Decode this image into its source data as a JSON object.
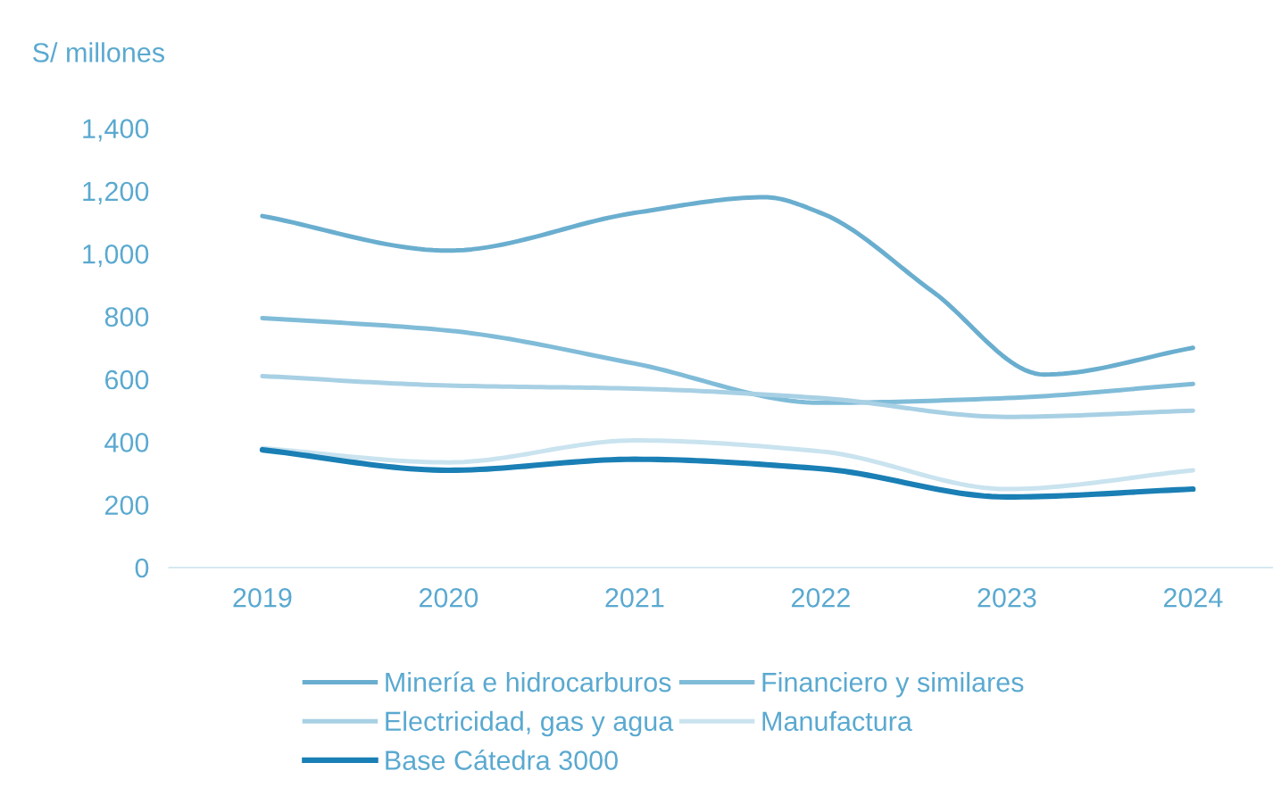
{
  "chart_data": {
    "type": "line",
    "ylabel": "S/ millones",
    "x": [
      2019,
      2020,
      2021,
      2022,
      2023,
      2024
    ],
    "series": [
      {
        "name": "Minería e hidrocarburos",
        "color": "#6aaecf",
        "x": [
          2019,
          2020,
          2021,
          2021.7,
          2022,
          2022.6,
          2023.2,
          2024
        ],
        "values": [
          1120,
          1010,
          1130,
          1180,
          1130,
          880,
          615,
          700
        ]
      },
      {
        "name": "Financiero y similares",
        "color": "#80bcd8",
        "values": [
          795,
          755,
          650,
          525,
          540,
          585
        ]
      },
      {
        "name": "Electricidad, gas y agua",
        "color": "#a8d0e4",
        "values": [
          610,
          580,
          570,
          540,
          480,
          500
        ]
      },
      {
        "name": "Manufactura",
        "color": "#c9e3ef",
        "values": [
          380,
          335,
          405,
          370,
          250,
          310
        ]
      },
      {
        "name": "Base Cátedra 3000",
        "color": "#1a7fb5",
        "values": [
          375,
          310,
          345,
          315,
          225,
          250
        ]
      }
    ],
    "xlim": [
      2018.5,
      2024.43
    ],
    "xticks": [
      2019,
      2020,
      2021,
      2022,
      2023,
      2024
    ],
    "ylim": [
      0,
      1400
    ],
    "yticks": [
      0,
      200,
      400,
      600,
      800,
      {
        "value": 1000,
        "label": "1,000"
      },
      {
        "value": 1200,
        "label": "1,200"
      },
      {
        "value": 1400,
        "label": "1,400"
      }
    ],
    "grid": false,
    "legend": "bottom",
    "marker": "none",
    "line_style": "solid"
  }
}
